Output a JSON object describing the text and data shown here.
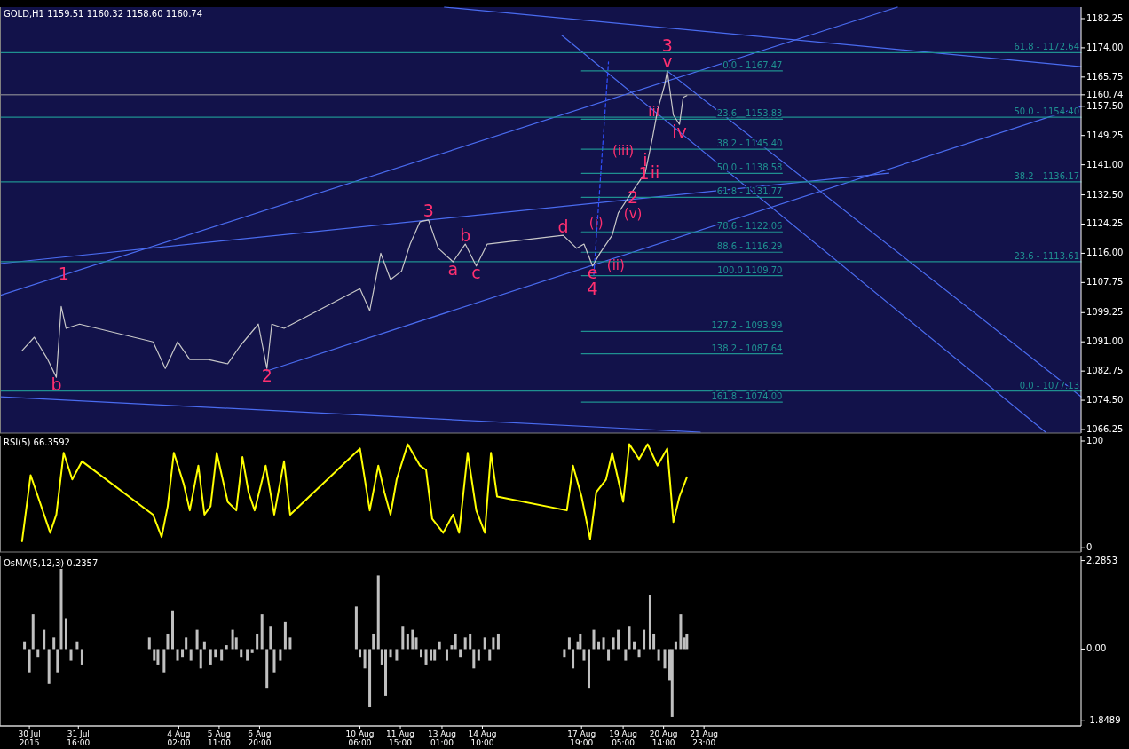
{
  "chart_data": [
    {
      "type": "line",
      "title": "GOLD,H1 1159.51 1160.32 1158.60 1160.74",
      "xlim": [
        "2015-07-29T00:00",
        "2015-09-03T19:00"
      ],
      "ylim": [
        1065.25,
        1185.5
      ],
      "tick_labels": "y",
      "yticks": [
        1182.25,
        {
          "value": 1174,
          "label": "1174.00"
        },
        1165.75,
        {
          "value": 1160.74,
          "label": "1160.74"
        },
        {
          "value": 1157.5,
          "label": "1157.50"
        },
        1149.25,
        {
          "value": 1141,
          "label": "1141.00"
        },
        {
          "value": 1132.5,
          "label": "1132.50"
        },
        1124.25,
        {
          "value": 1116,
          "label": "1116.00"
        },
        1107.75,
        1099.25,
        {
          "value": 1091,
          "label": "1091.00"
        },
        1082.75,
        {
          "value": 1074.5,
          "label": "1074.50"
        },
        1066.25
      ],
      "series": [
        {
          "color": "#4a6cf0",
          "x": [
            "2015-08-07T02:00",
            "2015-09-03T19:00"
          ],
          "values": [
            1082.8,
            1157.4
          ]
        },
        {
          "color": "#4a6cf0",
          "x": [
            "2015-07-29T00:00",
            "2015-08-28T13:00"
          ],
          "values": [
            1104.1,
            1185.5
          ]
        },
        {
          "color": "#4a6cf0",
          "x": [
            "2015-07-29T00:00",
            "2015-08-28T06:00"
          ],
          "values": [
            1113.1,
            1138.6
          ]
        },
        {
          "color": "#4a6cf0",
          "x": [
            "2015-08-13T03:00",
            "2015-09-03T19:00"
          ],
          "values": [
            1185.5,
            1168.7
          ]
        },
        {
          "color": "#4a6cf0",
          "x": [
            "2015-07-29T00:00",
            "2015-08-21T20:00"
          ],
          "values": [
            1075.5,
            1065.5
          ]
        },
        {
          "color": "#4a6cf0",
          "x": [
            "2015-08-17T03:00",
            "2015-09-02T14:00"
          ],
          "values": [
            1177.5,
            1065.5
          ]
        },
        {
          "color": "#4a6cf0",
          "x": [
            "2015-08-20T17:00",
            "2015-09-03T19:00"
          ],
          "values": [
            1167.5,
            1075.5
          ]
        },
        {
          "color": "#3050ff",
          "line_style": "dashed",
          "x": [
            "2015-08-18T05:00",
            "2015-08-18T17:00"
          ],
          "values": [
            1110,
            1170
          ]
        },
        {
          "name": "61.8 - 1172.64",
          "color": "#1f9090",
          "x": [
            "2015-07-29T00:00",
            "2015-09-03T19:00"
          ],
          "values": [
            1172.64,
            1172.64
          ]
        },
        {
          "name": "50.0 - 1154.40",
          "color": "#1f9090",
          "x": [
            "2015-07-29T00:00",
            "2015-09-03T19:00"
          ],
          "values": [
            1154.4,
            1154.4
          ]
        },
        {
          "name": "38.2 - 1136.17",
          "color": "#1f9090",
          "x": [
            "2015-07-29T00:00",
            "2015-09-03T19:00"
          ],
          "values": [
            1136.17,
            1136.17
          ]
        },
        {
          "name": "23.6 - 1113.61",
          "color": "#1f9090",
          "x": [
            "2015-07-29T00:00",
            "2015-09-03T19:00"
          ],
          "values": [
            1113.61,
            1113.61
          ]
        },
        {
          "name": "0.0 - 1077.13",
          "color": "#1f9090",
          "x": [
            "2015-07-29T00:00",
            "2015-09-03T19:00"
          ],
          "values": [
            1077.13,
            1077.13
          ]
        },
        {
          "name": "0.0 - 1167.47",
          "color": "#1f9090",
          "x": [
            "2015-08-17T19:00",
            "2015-08-24T15:00"
          ],
          "values": [
            1167.47,
            1167.47
          ]
        },
        {
          "name": "23.6 - 1153.83",
          "color": "#1f9090",
          "x": [
            "2015-08-17T19:00",
            "2015-08-24T15:00"
          ],
          "values": [
            1153.83,
            1153.83
          ]
        },
        {
          "name": "38.2 - 1145.40",
          "color": "#1f9090",
          "x": [
            "2015-08-17T19:00",
            "2015-08-24T15:00"
          ],
          "values": [
            1145.4,
            1145.4
          ]
        },
        {
          "name": "50.0 - 1138.58",
          "color": "#1f9090",
          "x": [
            "2015-08-17T19:00",
            "2015-08-24T15:00"
          ],
          "values": [
            1138.58,
            1138.58
          ]
        },
        {
          "name": "61.8 - 1131.77",
          "color": "#1f9090",
          "x": [
            "2015-08-17T19:00",
            "2015-08-24T15:00"
          ],
          "values": [
            1131.77,
            1131.77
          ]
        },
        {
          "name": "78.6 - 1122.06",
          "color": "#1f9090",
          "x": [
            "2015-08-17T19:00",
            "2015-08-24T15:00"
          ],
          "values": [
            1122.06,
            1122.06
          ]
        },
        {
          "name": "88.6 - 1116.29",
          "color": "#1f9090",
          "x": [
            "2015-08-17T19:00",
            "2015-08-24T15:00"
          ],
          "values": [
            1116.29,
            1116.29
          ]
        },
        {
          "name": "100.0 1109.70",
          "color": "#1f9090",
          "x": [
            "2015-08-17T19:00",
            "2015-08-24T15:00"
          ],
          "values": [
            1109.7,
            1109.7
          ]
        },
        {
          "name": "127.2 - 1093.99",
          "color": "#1f9090",
          "x": [
            "2015-08-17T19:00",
            "2015-08-24T15:00"
          ],
          "values": [
            1093.99,
            1093.99
          ]
        },
        {
          "name": "138.2 - 1087.64",
          "color": "#1f9090",
          "x": [
            "2015-08-17T19:00",
            "2015-08-24T15:00"
          ],
          "values": [
            1087.64,
            1087.64
          ]
        },
        {
          "name": "161.8 - 1074.00",
          "color": "#1f9090",
          "x": [
            "2015-08-17T19:00",
            "2015-08-24T15:00"
          ],
          "values": [
            1074,
            1074
          ]
        },
        {
          "color": "#c8c8c8",
          "x": [
            "2015-07-29T18:00",
            "2015-07-30T04:00",
            "2015-07-30T15:00",
            "2015-07-30T22:00",
            "2015-07-31T02:00",
            "2015-07-31T06:00",
            "2015-07-31T17:00",
            "2015-08-03T05:00",
            "2015-08-03T15:00",
            "2015-08-04T01:00",
            "2015-08-04T11:00",
            "2015-08-05T02:00",
            "2015-08-05T18:00",
            "2015-08-06T04:00",
            "2015-08-06T19:00",
            "2015-08-07T02:00",
            "2015-08-07T06:00",
            "2015-08-07T16:00",
            "2015-08-10T06:00",
            "2015-08-10T14:00",
            "2015-08-10T23:00",
            "2015-08-11T07:00",
            "2015-08-11T16:00",
            "2015-08-11T23:00",
            "2015-08-12T07:00",
            "2015-08-12T14:00",
            "2015-08-12T22:00",
            "2015-08-13T10:00",
            "2015-08-13T20:00",
            "2015-08-14T05:00",
            "2015-08-14T14:00",
            "2015-08-17T04:00",
            "2015-08-17T15:00",
            "2015-08-17T21:00",
            "2015-08-18T04:00",
            "2015-08-18T10:00",
            "2015-08-18T20:00",
            "2015-08-19T01:00",
            "2015-08-19T13:00",
            "2015-08-19T23:00",
            "2015-08-20T05:00",
            "2015-08-20T09:00",
            "2015-08-20T15:00",
            "2015-08-20T17:00",
            "2015-08-20T22:00",
            "2015-08-21T03:00",
            "2015-08-21T06:00",
            "2015-08-21T09:00"
          ],
          "values": [
            1088.5,
            1092.3,
            1086,
            1081,
            1101,
            1094.8,
            1096,
            1091,
            1083.5,
            1091,
            1086,
            1086,
            1084.8,
            1089.8,
            1096,
            1083.5,
            1096,
            1094.8,
            1106,
            1099.8,
            1116,
            1108.6,
            1111,
            1118.6,
            1124.9,
            1125.4,
            1117.4,
            1113.6,
            1118.6,
            1112.4,
            1118.6,
            1121.1,
            1117.4,
            1118.6,
            1112.4,
            1116,
            1121.1,
            1127.4,
            1133.7,
            1138.7,
            1148.7,
            1156.2,
            1163.7,
            1167.5,
            1155,
            1152.4,
            1160,
            1160.5
          ]
        }
      ],
      "ref_lines": [
        {
          "axis": "y",
          "value": 1160.74,
          "color": "#a0a0a0"
        }
      ],
      "annotations": [
        {
          "text": "1",
          "x": "2015-07-31T04:00",
          "y": 1109.9
        },
        {
          "text": "2",
          "x": "2015-08-07T02:00",
          "y": 1083.5
        },
        {
          "text": "3",
          "x": "2015-08-12T14:00",
          "y": 1125.4
        },
        {
          "text": "b",
          "x": "2015-07-30T22:00",
          "y": 1081
        },
        {
          "text": "a",
          "x": "2015-08-13T10:00",
          "y": 1113.6
        },
        {
          "text": "b",
          "x": "2015-08-13T20:00",
          "y": 1118.6
        },
        {
          "text": "c",
          "x": "2015-08-14T05:00",
          "y": 1112.4
        },
        {
          "text": "d",
          "x": "2015-08-17T04:00",
          "y": 1121.1
        },
        {
          "text": "e",
          "x": "2015-08-18T04:00",
          "y": 1112.4
        },
        {
          "text": "4",
          "x": "2015-08-18T04:00",
          "y": 1112.4
        },
        {
          "text": "(i)",
          "x": "2015-08-18T07:00",
          "y": 1124.4
        },
        {
          "text": "(ii)",
          "x": "2015-08-18T23:00",
          "y": 1112.4
        },
        {
          "text": "(iii)",
          "x": "2015-08-19T05:00",
          "y": 1144.9
        },
        {
          "text": "2",
          "x": "2015-08-19T13:00",
          "y": 1133.7
        },
        {
          "text": "(v)",
          "x": "2015-08-19T13:00",
          "y": 1133.7
        },
        {
          "text": "1",
          "x": "2015-08-19T22:00",
          "y": 1138.2
        },
        {
          "text": "i",
          "x": "2015-08-19T23:00",
          "y": 1142
        },
        {
          "text": "ii",
          "x": "2015-08-20T07:00",
          "y": 1138.6
        },
        {
          "text": "iii",
          "x": "2015-08-20T06:00",
          "y": 1155.7
        },
        {
          "text": "iv",
          "x": "2015-08-21T03:00",
          "y": 1152.4
        },
        {
          "text": "v",
          "x": "2015-08-20T17:00",
          "y": 1167.5
        },
        {
          "text": "3",
          "x": "2015-08-20T17:00",
          "y": 1167.5
        }
      ]
    },
    {
      "type": "line",
      "title": "RSI(5) 66.3592",
      "xlim": [
        "2015-07-29T00:00",
        "2015-09-03T19:00"
      ],
      "ylim": [
        -4,
        105
      ],
      "yticks": [
        100,
        0
      ],
      "tick_labels": "y",
      "series": [
        {
          "color": "#ffff00",
          "x": [
            "2015-07-29T18:00",
            "2015-07-30T01:00",
            "2015-07-30T07:00",
            "2015-07-30T17:00",
            "2015-07-30T22:00",
            "2015-07-31T04:00",
            "2015-07-31T11:00",
            "2015-07-31T19:00",
            "2015-08-03T05:00",
            "2015-08-03T12:00",
            "2015-08-03T17:00",
            "2015-08-03T22:00",
            "2015-08-04T06:00",
            "2015-08-04T11:00",
            "2015-08-04T18:00",
            "2015-08-04T23:00",
            "2015-08-05T04:00",
            "2015-08-05T09:00",
            "2015-08-05T18:00",
            "2015-08-06T01:00",
            "2015-08-06T06:00",
            "2015-08-06T11:00",
            "2015-08-06T16:00",
            "2015-08-07T01:00",
            "2015-08-07T08:00",
            "2015-08-07T16:00",
            "2015-08-07T21:00",
            "2015-08-10T06:00",
            "2015-08-10T14:00",
            "2015-08-10T21:00",
            "2015-08-11T02:00",
            "2015-08-11T07:00",
            "2015-08-11T12:00",
            "2015-08-11T21:00",
            "2015-08-12T07:00",
            "2015-08-12T12:00",
            "2015-08-12T17:00",
            "2015-08-13T02:00",
            "2015-08-13T10:00",
            "2015-08-13T15:00",
            "2015-08-13T22:00",
            "2015-08-14T05:00",
            "2015-08-14T12:00",
            "2015-08-14T17:00",
            "2015-08-14T22:00",
            "2015-08-17T07:00",
            "2015-08-17T12:00",
            "2015-08-17T19:00",
            "2015-08-18T02:00",
            "2015-08-18T07:00",
            "2015-08-18T15:00",
            "2015-08-18T20:00",
            "2015-08-19T05:00",
            "2015-08-19T10:00",
            "2015-08-19T18:00",
            "2015-08-20T01:00",
            "2015-08-20T09:00",
            "2015-08-20T17:00",
            "2015-08-20T22:00",
            "2015-08-21T03:00",
            "2015-08-21T09:00"
          ],
          "values": [
            6,
            68,
            48,
            14,
            31,
            89,
            64,
            81,
            31,
            10,
            39,
            89,
            60,
            35,
            77,
            31,
            39,
            89,
            43,
            35,
            85,
            52,
            35,
            77,
            31,
            81,
            31,
            93,
            35,
            77,
            52,
            31,
            64,
            97,
            77,
            73,
            27,
            14,
            31,
            14,
            89,
            35,
            14,
            89,
            48,
            35,
            77,
            48,
            8,
            52,
            64,
            89,
            43,
            97,
            83,
            97,
            77,
            93,
            24,
            48,
            66
          ]
        }
      ]
    },
    {
      "type": "bar",
      "title": "OsMA(5,12,3) 0.2357",
      "xlim": [
        "2015-07-29T00:00",
        "2015-09-03T19:00"
      ],
      "ylim": [
        -1.98,
        2.39
      ],
      "yticks": [
        2.2853,
        {
          "value": 0,
          "label": "0.00"
        },
        -1.8489
      ],
      "xticks": [
        {
          "value": "2015-07-30T00:00",
          "label": "30 Jul 2015"
        },
        {
          "value": "2015-07-31T16:00",
          "label": "31 Jul 16:00"
        },
        {
          "value": "2015-08-04T02:00",
          "label": "4 Aug 02:00"
        },
        {
          "value": "2015-08-05T11:00",
          "label": "5 Aug 11:00"
        },
        {
          "value": "2015-08-06T20:00",
          "label": "6 Aug 20:00"
        },
        {
          "value": "2015-08-10T06:00",
          "label": "10 Aug 06:00"
        },
        {
          "value": "2015-08-11T15:00",
          "label": "11 Aug 15:00"
        },
        {
          "value": "2015-08-13T01:00",
          "label": "13 Aug 01:00"
        },
        {
          "value": "2015-08-14T10:00",
          "label": "14 Aug 10:00"
        },
        {
          "value": "2015-08-17T19:00",
          "label": "17 Aug 19:00"
        },
        {
          "value": "2015-08-19T05:00",
          "label": "19 Aug 05:00"
        },
        {
          "value": "2015-08-20T14:00",
          "label": "20 Aug 14:00"
        },
        {
          "value": "2015-08-21T23:00",
          "label": "21 Aug 23:00"
        }
      ],
      "series": [
        {
          "color": "#c0c0c0",
          "x": [
            "2015-07-29T20:00",
            "2015-07-30T00:00",
            "2015-07-30T03:00",
            "2015-07-30T07:00",
            "2015-07-30T12:00",
            "2015-07-30T16:00",
            "2015-07-30T20:00",
            "2015-07-30T23:00",
            "2015-07-31T02:00",
            "2015-07-31T06:00",
            "2015-07-31T10:00",
            "2015-07-31T15:00",
            "2015-07-31T19:00",
            "2015-08-03T02:00",
            "2015-08-03T06:00",
            "2015-08-03T09:00",
            "2015-08-03T14:00",
            "2015-08-03T17:00",
            "2015-08-03T21:00",
            "2015-08-04T01:00",
            "2015-08-04T05:00",
            "2015-08-04T08:00",
            "2015-08-04T12:00",
            "2015-08-04T17:00",
            "2015-08-04T20:00",
            "2015-08-04T23:00",
            "2015-08-05T04:00",
            "2015-08-05T08:00",
            "2015-08-05T13:00",
            "2015-08-05T17:00",
            "2015-08-05T22:00",
            "2015-08-06T01:00",
            "2015-08-06T05:00",
            "2015-08-06T10:00",
            "2015-08-06T14:00",
            "2015-08-06T18:00",
            "2015-08-06T22:00",
            "2015-08-07T02:00",
            "2015-08-07T05:00",
            "2015-08-07T08:00",
            "2015-08-07T13:00",
            "2015-08-07T17:00",
            "2015-08-07T21:00",
            "2015-08-10T03:00",
            "2015-08-10T06:00",
            "2015-08-10T10:00",
            "2015-08-10T14:00",
            "2015-08-10T17:00",
            "2015-08-10T21:00",
            "2015-08-11T00:00",
            "2015-08-11T03:00",
            "2015-08-11T07:00",
            "2015-08-11T12:00",
            "2015-08-11T17:00",
            "2015-08-11T21:00",
            "2015-08-12T01:00",
            "2015-08-12T04:00",
            "2015-08-12T08:00",
            "2015-08-12T12:00",
            "2015-08-12T16:00",
            "2015-08-12T19:00",
            "2015-08-12T23:00",
            "2015-08-13T05:00",
            "2015-08-13T09:00",
            "2015-08-13T12:00",
            "2015-08-13T16:00",
            "2015-08-13T20:00",
            "2015-08-14T00:00",
            "2015-08-14T03:00",
            "2015-08-14T07:00",
            "2015-08-14T12:00",
            "2015-08-14T16:00",
            "2015-08-14T19:00",
            "2015-08-14T23:00",
            "2015-08-17T05:00",
            "2015-08-17T09:00",
            "2015-08-17T12:00",
            "2015-08-17T16:00",
            "2015-08-17T18:00",
            "2015-08-17T21:00",
            "2015-08-18T01:00",
            "2015-08-18T05:00",
            "2015-08-18T09:00",
            "2015-08-18T13:00",
            "2015-08-18T17:00",
            "2015-08-18T21:00",
            "2015-08-19T01:00",
            "2015-08-19T07:00",
            "2015-08-19T10:00",
            "2015-08-19T14:00",
            "2015-08-19T18:00",
            "2015-08-19T22:00",
            "2015-08-20T03:00",
            "2015-08-20T06:00",
            "2015-08-20T10:00",
            "2015-08-20T15:00",
            "2015-08-20T19:00",
            "2015-08-20T21:00",
            "2015-08-21T00:00",
            "2015-08-21T04:00",
            "2015-08-21T07:00",
            "2015-08-21T09:00"
          ],
          "values": [
            0.2,
            -0.6,
            0.9,
            -0.2,
            0.5,
            -0.9,
            0.3,
            -0.6,
            2.28,
            0.8,
            -0.3,
            0.2,
            -0.4,
            0.3,
            -0.3,
            -0.4,
            -0.6,
            0.4,
            1.0,
            -0.3,
            -0.2,
            0.3,
            -0.3,
            0.5,
            -0.5,
            0.2,
            -0.4,
            -0.2,
            -0.3,
            0.1,
            0.5,
            0.3,
            -0.2,
            -0.3,
            -0.1,
            0.4,
            0.9,
            -1.0,
            0.6,
            -0.6,
            -0.3,
            0.7,
            0.3,
            1.1,
            -0.2,
            -0.5,
            -1.5,
            0.4,
            1.9,
            -0.4,
            -1.2,
            -0.2,
            -0.3,
            0.6,
            0.4,
            0.5,
            0.3,
            -0.2,
            -0.4,
            -0.3,
            -0.3,
            0.2,
            -0.3,
            0.1,
            0.4,
            -0.2,
            0.3,
            0.4,
            -0.5,
            -0.3,
            0.3,
            -0.3,
            0.3,
            0.4,
            -0.2,
            0.3,
            -0.5,
            0.2,
            0.4,
            -0.3,
            -1.0,
            0.5,
            0.2,
            0.3,
            -0.3,
            0.3,
            0.5,
            -0.3,
            0.6,
            0.2,
            -0.2,
            0.5,
            1.4,
            0.4,
            -0.3,
            -0.5,
            -0.8,
            -1.75,
            0.2,
            0.9,
            0.3,
            0.4
          ]
        }
      ]
    }
  ]
}
